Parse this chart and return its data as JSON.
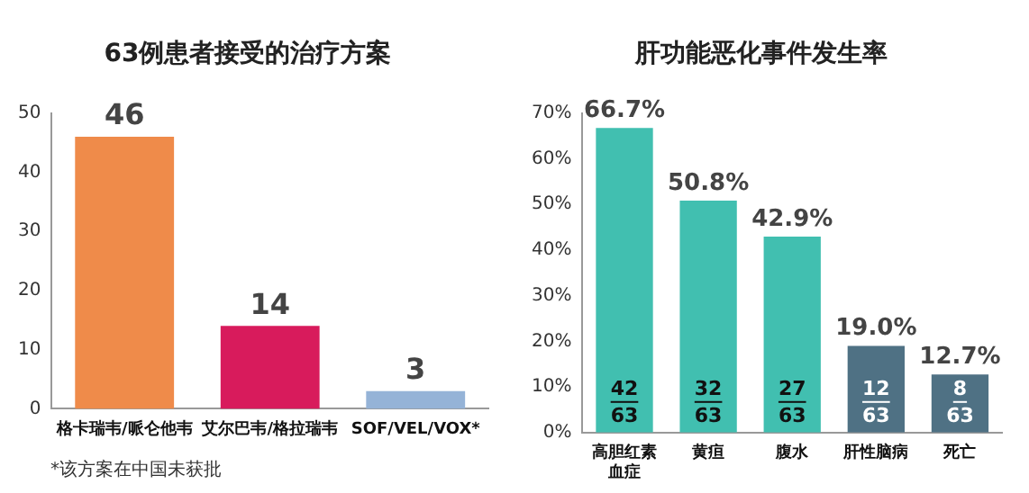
{
  "chart_data": [
    {
      "type": "bar",
      "title": "63例患者接受的治疗方案",
      "categories": [
        "格卡瑞韦/哌仑他韦",
        "艾尔巴韦/格拉瑞韦",
        "SOF/VEL/VOX*"
      ],
      "values": [
        46,
        14,
        3
      ],
      "colors": [
        "#ef8b4a",
        "#d81b5c",
        "#95b3d7"
      ],
      "ylim": [
        0,
        50
      ],
      "yticks": [
        0,
        10,
        20,
        30,
        40,
        50
      ],
      "grid": false,
      "legend": false,
      "data_labels": true,
      "annotations": [
        "*该方案在中国未获批"
      ]
    },
    {
      "type": "bar",
      "title": "肝功能恶化事件发生率",
      "categories": [
        "高胆红素血症",
        "黄疸",
        "腹水",
        "肝性脑病",
        "死亡"
      ],
      "values": [
        66.7,
        50.8,
        42.9,
        19.0,
        12.7
      ],
      "colors": [
        "#41bfb0",
        "#41bfb0",
        "#41bfb0",
        "#4f7184",
        "#4f7184"
      ],
      "ylim": [
        0,
        70
      ],
      "yticks": [
        {
          "value": 0,
          "label": "0%"
        },
        {
          "value": 10,
          "label": "10%"
        },
        {
          "value": 20,
          "label": "20%"
        },
        {
          "value": 30,
          "label": "30%"
        },
        {
          "value": 40,
          "label": "40%"
        },
        {
          "value": 50,
          "label": "50%"
        },
        {
          "value": 60,
          "label": "60%"
        },
        {
          "value": 70,
          "label": "70%"
        }
      ],
      "grid": false,
      "legend": false,
      "value_labels": [
        "66.7%",
        "50.8%",
        "42.9%",
        "19.0%",
        "12.7%"
      ],
      "annotations": [
        "42",
        "63",
        "32",
        "63",
        "27",
        "63",
        "12",
        "63",
        "8",
        "63"
      ]
    }
  ]
}
